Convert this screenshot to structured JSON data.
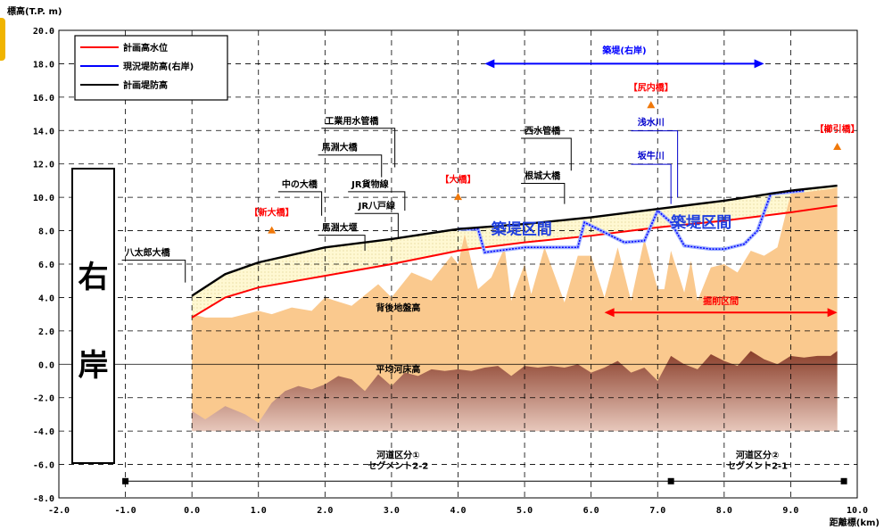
{
  "chart_data": {
    "type": "line",
    "ylabel": "標高(T.P. m)",
    "xlabel": "距離標(km)",
    "xlim": [
      -2.0,
      10.0
    ],
    "ylim": [
      -8.0,
      20.0
    ],
    "grid": true,
    "xticks": [
      "-2.0",
      "-1.0",
      "0.0",
      "1.0",
      "2.0",
      "3.0",
      "4.0",
      "5.0",
      "6.0",
      "7.0",
      "8.0",
      "9.0",
      "10.0"
    ],
    "yticks": [
      "20.0",
      "18.0",
      "16.0",
      "14.0",
      "12.0",
      "10.0",
      "8.0",
      "6.0",
      "4.0",
      "2.0",
      "0.0",
      "-2.0",
      "-4.0",
      "-6.0",
      "-8.0"
    ],
    "legend": {
      "placement": "top-left",
      "entries": [
        {
          "name": "計画高水位",
          "color": "#ff0000"
        },
        {
          "name": "現況堤防高(右岸)",
          "color": "#0000ff"
        },
        {
          "name": "計画堤防高",
          "color": "#000000"
        }
      ]
    },
    "series": [
      {
        "name": "計画高水位",
        "color": "#ff0000",
        "x": [
          0.0,
          0.5,
          1.0,
          2.0,
          3.0,
          4.0,
          5.0,
          6.0,
          7.0,
          8.0,
          9.0,
          9.7
        ],
        "y": [
          2.8,
          4.0,
          4.6,
          5.3,
          6.0,
          6.8,
          7.3,
          7.7,
          8.2,
          8.6,
          9.1,
          9.5
        ]
      },
      {
        "name": "現況堤防高(右岸)",
        "color": "#0000ff",
        "x": [
          4.0,
          4.3,
          4.4,
          5.0,
          5.8,
          5.9,
          6.5,
          6.8,
          7.0,
          7.2,
          7.4,
          7.8,
          8.0,
          8.3,
          8.5,
          8.7,
          9.2
        ],
        "y": [
          8.1,
          8.1,
          6.7,
          7.0,
          7.0,
          8.5,
          7.3,
          7.4,
          9.2,
          8.5,
          7.1,
          6.9,
          6.9,
          7.2,
          8.0,
          10.2,
          10.4
        ]
      },
      {
        "name": "計画堤防高",
        "color": "#000000",
        "x": [
          0.0,
          0.5,
          1.0,
          2.0,
          3.0,
          4.0,
          5.0,
          6.0,
          7.0,
          8.0,
          9.0,
          9.7
        ],
        "y": [
          4.1,
          5.4,
          6.1,
          7.0,
          7.5,
          8.1,
          8.4,
          8.8,
          9.3,
          9.8,
          10.4,
          10.7
        ]
      }
    ],
    "areas": [
      {
        "name": "背後地盤高",
        "color": "#fac98e",
        "x": [
          0.0,
          0.2,
          0.6,
          1.0,
          1.2,
          1.5,
          1.8,
          2.0,
          2.4,
          2.8,
          3.0,
          3.3,
          3.6,
          3.9,
          4.0,
          4.1,
          4.3,
          4.5,
          4.7,
          4.8,
          5.0,
          5.1,
          5.3,
          5.6,
          5.8,
          6.0,
          6.2,
          6.4,
          6.6,
          6.8,
          7.0,
          7.1,
          7.2,
          7.4,
          7.5,
          7.6,
          7.8,
          8.0,
          8.2,
          8.4,
          8.6,
          8.8,
          9.0,
          9.2,
          9.4,
          9.6,
          9.7
        ],
        "y": [
          3.0,
          2.8,
          2.8,
          3.2,
          3.0,
          3.4,
          3.2,
          4.0,
          3.5,
          4.8,
          4.0,
          5.5,
          5.0,
          6.5,
          6.0,
          7.8,
          4.5,
          5.2,
          7.0,
          3.8,
          6.0,
          4.2,
          7.0,
          3.7,
          6.5,
          6.5,
          4.0,
          7.0,
          3.8,
          7.5,
          4.5,
          4.5,
          6.8,
          4.3,
          6.2,
          3.8,
          5.8,
          6.0,
          5.5,
          6.8,
          6.5,
          7.0,
          10.2,
          10.3,
          10.4,
          10.5,
          10.6
        ]
      },
      {
        "name": "平均河床高",
        "color": "#8a3e2a",
        "x": [
          0.0,
          0.2,
          0.5,
          0.8,
          1.0,
          1.2,
          1.4,
          1.6,
          1.8,
          2.0,
          2.2,
          2.4,
          2.6,
          2.8,
          3.0,
          3.2,
          3.4,
          3.6,
          3.8,
          4.0,
          4.2,
          4.4,
          4.6,
          4.8,
          5.0,
          5.2,
          5.4,
          5.6,
          5.8,
          6.0,
          6.2,
          6.4,
          6.6,
          6.8,
          7.0,
          7.2,
          7.4,
          7.6,
          7.8,
          8.0,
          8.2,
          8.4,
          8.6,
          8.8,
          9.0,
          9.2,
          9.4,
          9.6,
          9.7
        ],
        "y": [
          -2.8,
          -3.3,
          -2.5,
          -3.0,
          -3.5,
          -2.3,
          -1.6,
          -1.3,
          -1.5,
          -1.2,
          -0.7,
          -0.9,
          -1.6,
          -0.6,
          -1.3,
          -0.5,
          -0.7,
          -0.3,
          -0.4,
          -0.3,
          -0.4,
          -0.2,
          -0.1,
          -0.7,
          -0.1,
          -0.2,
          -0.1,
          -0.2,
          0.0,
          -0.5,
          -0.2,
          0.2,
          -0.5,
          -0.2,
          -1.0,
          0.5,
          0.0,
          -0.3,
          0.6,
          0.2,
          -0.1,
          0.8,
          0.3,
          0.0,
          0.5,
          0.4,
          0.5,
          0.5,
          0.8
        ]
      }
    ],
    "area_bottom": -4.0,
    "area_labels": [
      {
        "text": "背後地盤高",
        "x": 3.1,
        "y": 3.2
      },
      {
        "text": "平均河床高",
        "x": 3.1,
        "y": -0.5
      }
    ],
    "bridges": [
      {
        "text": "八太郎大橋",
        "x": -1.0,
        "y": 6.5,
        "pole_x": -0.1,
        "pole_top": 6.0,
        "pole_bottom": 4.9
      },
      {
        "text": "中の大橋",
        "x": 1.35,
        "y": 10.6,
        "pole_x": 1.95,
        "pole_top": 10.0,
        "pole_bottom": 8.9
      },
      {
        "text": "馬淵大橋",
        "x": 1.95,
        "y": 12.8,
        "pole_x": 2.85,
        "pole_top": 12.2,
        "pole_bottom": 11.2
      },
      {
        "text": "工業用水管橋",
        "x": 2.0,
        "y": 14.4,
        "pole_x": 3.05,
        "pole_top": 13.8,
        "pole_bottom": 11.8
      },
      {
        "text": "JR貨物線",
        "x": 2.4,
        "y": 10.6,
        "pole_x": 3.2,
        "pole_top": 10.0,
        "pole_bottom": 9.2
      },
      {
        "text": "JR八戸線",
        "x": 2.5,
        "y": 9.3,
        "pole_x": 3.1,
        "pole_top": 8.7,
        "pole_bottom": 7.5
      },
      {
        "text": "馬淵大堰",
        "x": 1.95,
        "y": 8.0,
        "pole_x": 2.6,
        "pole_top": 7.4,
        "pole_bottom": 6.8
      },
      {
        "text": "西水管橋",
        "x": 5.0,
        "y": 13.8,
        "pole_x": 5.7,
        "pole_top": 13.2,
        "pole_bottom": 11.6
      },
      {
        "text": "根城大橋",
        "x": 5.0,
        "y": 11.1,
        "pole_x": 5.6,
        "pole_top": 10.5,
        "pole_bottom": 9.6
      }
    ],
    "markers": [
      {
        "text": "【新大橋】",
        "x": 1.2,
        "y": 8.0,
        "label_y": 8.9
      },
      {
        "text": "【大橋】",
        "x": 4.0,
        "y": 10.0,
        "label_y": 10.9
      },
      {
        "text": "【尻内橋】",
        "x": 6.9,
        "y": 15.5,
        "label_y": 16.4
      },
      {
        "text": "【櫛引橋】",
        "x": 9.7,
        "y": 13.0,
        "label_y": 13.9
      }
    ],
    "blue_labels": [
      {
        "text": "浅水川",
        "x": 6.9,
        "y": 14.3,
        "lead_from": 6.6,
        "lead_to": 7.3
      },
      {
        "text": "坂牛川",
        "x": 6.9,
        "y": 12.3,
        "lead_from": 6.6,
        "lead_to": 7.2
      }
    ],
    "zone_labels": [
      {
        "text": "築堤区間",
        "x": 4.5,
        "y": 7.8
      },
      {
        "text": "築堤区間",
        "x": 7.2,
        "y": 8.2
      }
    ],
    "spans": [
      {
        "text": "築堤(右岸)",
        "x1": 4.4,
        "x2": 8.6,
        "y": 18.0,
        "label_y": 18.6,
        "color": "#0000ff"
      },
      {
        "text": "掘削区間",
        "x1": 6.2,
        "x2": 9.7,
        "y": 3.1,
        "label_y": 3.6,
        "color": "#ff0000"
      }
    ],
    "segments": [
      {
        "line1": "河道区分①",
        "line2": "セグメント2-2",
        "x1": -1.0,
        "x2": 7.2,
        "label_x": 3.1
      },
      {
        "line1": "河道区分②",
        "line2": "セグメント2-1",
        "x1": 7.2,
        "x2": 9.8,
        "label_x": 8.5
      }
    ],
    "segment_line_y": -7.0,
    "bank_label": [
      "右",
      "岸"
    ]
  }
}
